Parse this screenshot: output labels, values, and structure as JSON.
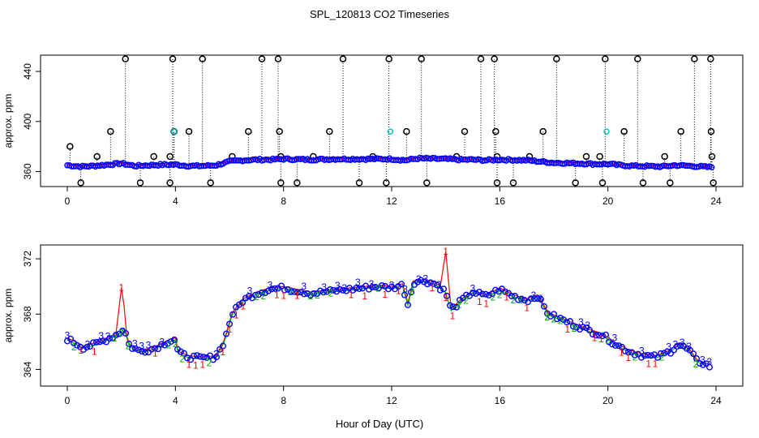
{
  "chart_data": {
    "type": "scatter",
    "title": "SPL_120813  CO2 Timeseries",
    "xlabel": "Hour of Day (UTC)",
    "colors": {
      "series1": "#ff0000",
      "series2": "#00b000",
      "series3": "#0000ff",
      "outlier": "#000000",
      "cyan": "#00c8c8"
    },
    "panels": [
      {
        "name": "top",
        "ylabel": "approx. ppm",
        "xlim": [
          0,
          24
        ],
        "ylim": [
          348,
          453
        ],
        "xticks": [
          0,
          4,
          8,
          12,
          16,
          20,
          24
        ],
        "yticks": [
          360,
          400,
          440
        ],
        "baseline": [
          [
            0,
            365
          ],
          [
            0.5,
            364
          ],
          [
            1,
            364.5
          ],
          [
            1.5,
            365.5
          ],
          [
            2,
            366.5
          ],
          [
            2.5,
            364.5
          ],
          [
            3,
            365
          ],
          [
            3.5,
            365.5
          ],
          [
            4,
            365.5
          ],
          [
            4.5,
            364.5
          ],
          [
            5,
            364.5
          ],
          [
            5.5,
            365
          ],
          [
            6,
            368
          ],
          [
            6.5,
            369
          ],
          [
            7,
            369.5
          ],
          [
            7.5,
            369.5
          ],
          [
            8,
            370
          ],
          [
            9,
            369.5
          ],
          [
            10,
            370
          ],
          [
            11,
            370
          ],
          [
            12,
            370
          ],
          [
            12.5,
            369
          ],
          [
            13,
            370.5
          ],
          [
            14,
            370
          ],
          [
            14.5,
            369.5
          ],
          [
            15,
            369.5
          ],
          [
            15.5,
            369
          ],
          [
            16,
            369.5
          ],
          [
            17,
            369
          ],
          [
            18,
            367
          ],
          [
            19,
            366.5
          ],
          [
            19.5,
            366
          ],
          [
            20,
            366
          ],
          [
            20.5,
            365
          ],
          [
            21,
            364.5
          ],
          [
            22,
            364
          ],
          [
            22.5,
            365
          ],
          [
            23,
            364.5
          ],
          [
            23.8,
            363.5
          ]
        ],
        "spikes": [
          [
            0.1,
            380
          ],
          [
            1.1,
            372
          ],
          [
            1.6,
            392
          ],
          [
            2.15,
            450
          ],
          [
            3.2,
            372
          ],
          [
            3.8,
            372
          ],
          [
            3.9,
            450
          ],
          [
            3.95,
            392
          ],
          [
            4.5,
            392
          ],
          [
            5.0,
            450
          ],
          [
            6.1,
            372
          ],
          [
            6.7,
            392
          ],
          [
            7.2,
            450
          ],
          [
            7.8,
            450
          ],
          [
            7.85,
            392
          ],
          [
            7.9,
            372
          ],
          [
            9.1,
            372
          ],
          [
            9.7,
            392
          ],
          [
            10.2,
            450
          ],
          [
            11.3,
            372
          ],
          [
            11.9,
            450
          ],
          [
            12.55,
            392
          ],
          [
            13.1,
            450
          ],
          [
            14.4,
            372
          ],
          [
            14.7,
            392
          ],
          [
            15.3,
            450
          ],
          [
            15.8,
            450
          ],
          [
            15.85,
            392
          ],
          [
            15.9,
            372
          ],
          [
            17.1,
            372
          ],
          [
            17.6,
            392
          ],
          [
            18.1,
            450
          ],
          [
            19.2,
            372
          ],
          [
            19.7,
            372
          ],
          [
            19.9,
            450
          ],
          [
            20.6,
            392
          ],
          [
            21.1,
            450
          ],
          [
            22.1,
            372
          ],
          [
            22.7,
            392
          ],
          [
            23.2,
            450
          ],
          [
            23.8,
            450
          ],
          [
            23.82,
            392
          ],
          [
            23.85,
            372
          ]
        ],
        "dips": [
          0.5,
          2.7,
          3.8,
          5.3,
          7.9,
          8.5,
          10.8,
          11.8,
          13.3,
          15.9,
          16.5,
          18.8,
          19.8,
          21.3,
          22.3,
          23.9
        ],
        "cyan_points": [
          [
            3.95,
            392
          ],
          [
            11.95,
            392
          ],
          [
            19.95,
            392
          ]
        ]
      },
      {
        "name": "bottom",
        "ylabel": "approx. ppm",
        "xlim": [
          0,
          24
        ],
        "ylim": [
          362.8,
          373.0
        ],
        "xticks": [
          0,
          4,
          8,
          12,
          16,
          20,
          24
        ],
        "yticks": [
          364,
          368,
          372
        ],
        "baseline": [
          [
            0,
            366.2
          ],
          [
            0.3,
            365.9
          ],
          [
            0.6,
            365.6
          ],
          [
            1,
            365.8
          ],
          [
            1.5,
            366.2
          ],
          [
            1.9,
            366.6
          ],
          [
            2.1,
            367.0
          ],
          [
            2.3,
            365.7
          ],
          [
            2.7,
            365.3
          ],
          [
            3.2,
            365.5
          ],
          [
            3.7,
            366.0
          ],
          [
            4.0,
            366.2
          ],
          [
            4.1,
            365.2
          ],
          [
            4.5,
            364.9
          ],
          [
            5.0,
            364.8
          ],
          [
            5.5,
            364.9
          ],
          [
            5.8,
            366.0
          ],
          [
            6.1,
            368.0
          ],
          [
            6.5,
            369.0
          ],
          [
            7.0,
            369.5
          ],
          [
            7.5,
            369.8
          ],
          [
            8.0,
            369.9
          ],
          [
            8.5,
            369.7
          ],
          [
            9.0,
            369.5
          ],
          [
            9.5,
            369.6
          ],
          [
            10.0,
            369.7
          ],
          [
            10.5,
            369.8
          ],
          [
            11.0,
            369.9
          ],
          [
            11.5,
            370.0
          ],
          [
            12.0,
            369.9
          ],
          [
            12.4,
            370.1
          ],
          [
            12.6,
            368.7
          ],
          [
            12.8,
            370.3
          ],
          [
            13.2,
            370.4
          ],
          [
            13.6,
            370.2
          ],
          [
            14.0,
            369.6
          ],
          [
            14.2,
            368.3
          ],
          [
            14.6,
            369.0
          ],
          [
            15.0,
            369.6
          ],
          [
            15.5,
            369.3
          ],
          [
            16.0,
            369.8
          ],
          [
            16.5,
            369.3
          ],
          [
            17.0,
            369.0
          ],
          [
            17.4,
            369.3
          ],
          [
            17.8,
            368.0
          ],
          [
            18.3,
            367.6
          ],
          [
            18.8,
            367.2
          ],
          [
            19.3,
            366.8
          ],
          [
            19.8,
            366.5
          ],
          [
            20.3,
            365.8
          ],
          [
            20.8,
            365.3
          ],
          [
            21.3,
            365.0
          ],
          [
            21.8,
            364.9
          ],
          [
            22.3,
            365.3
          ],
          [
            22.6,
            365.8
          ],
          [
            23.0,
            365.4
          ],
          [
            23.3,
            364.6
          ],
          [
            23.6,
            364.4
          ],
          [
            23.8,
            364.2
          ]
        ],
        "red_spikes": [
          [
            2.0,
            369.8
          ],
          [
            14.0,
            372.4
          ]
        ]
      }
    ]
  }
}
